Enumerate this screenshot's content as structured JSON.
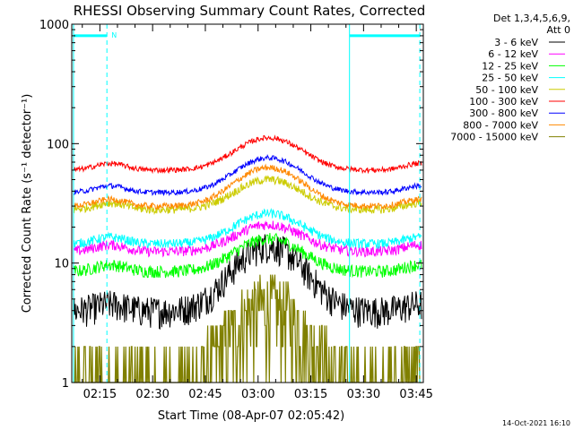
{
  "chart_data": {
    "type": "line",
    "title": "RHESSI Observing Summary Count Rates, Corrected",
    "xlabel": "Start Time (08-Apr-07 02:05:42)",
    "ylabel": "Corrected Count Rate (s⁻¹ detector⁻¹)",
    "yscale": "log",
    "ylim": [
      1,
      1000
    ],
    "xlim_minutes": [
      2.0,
      102.0
    ],
    "xticks": [
      {
        "minute": 10,
        "label": "02:15"
      },
      {
        "minute": 25,
        "label": "02:30"
      },
      {
        "minute": 40,
        "label": "02:45"
      },
      {
        "minute": 55,
        "label": "03:00"
      },
      {
        "minute": 70,
        "label": "03:15"
      },
      {
        "minute": 85,
        "label": "03:30"
      },
      {
        "minute": 100,
        "label": "03:45"
      }
    ],
    "yticks": [
      {
        "value": 1,
        "label": "1"
      },
      {
        "value": 10,
        "label": "10"
      },
      {
        "value": 100,
        "label": "100"
      },
      {
        "value": 1000,
        "label": "1000"
      }
    ],
    "legend_header": [
      "Det 1,3,4,5,6,9,",
      "Att 0"
    ],
    "legend_position": "right",
    "series": [
      {
        "name": "3 - 6 keV",
        "color": "#000000",
        "min": 4.0,
        "peak": 14.0,
        "jitter": 0.3
      },
      {
        "name": "6 - 12 keV",
        "color": "#ff00ff",
        "min": 12.5,
        "peak": 21.0,
        "jitter": 0.1
      },
      {
        "name": "12 - 25 keV",
        "color": "#00ff00",
        "min": 8.5,
        "peak": 16.0,
        "jitter": 0.12
      },
      {
        "name": "25 - 50 keV",
        "color": "#00ffff",
        "min": 14.5,
        "peak": 26.0,
        "jitter": 0.09
      },
      {
        "name": "50 - 100 keV",
        "color": "#cccc00",
        "min": 28.0,
        "peak": 50.0,
        "jitter": 0.08
      },
      {
        "name": "100 - 300 keV",
        "color": "#ff0000",
        "min": 60.0,
        "peak": 112.0,
        "jitter": 0.05
      },
      {
        "name": "300 - 800 keV",
        "color": "#0000ff",
        "min": 39.0,
        "peak": 76.0,
        "jitter": 0.05
      },
      {
        "name": "800 - 7000 keV",
        "color": "#ff8800",
        "min": 30.0,
        "peak": 63.0,
        "jitter": 0.06
      },
      {
        "name": "7000 - 15000 keV",
        "color": "#808000",
        "min": 1.0,
        "peak": 4.5,
        "jitter": 0.8
      }
    ],
    "annotations": [
      {
        "type": "bar",
        "label": "N",
        "color": "#00ffff",
        "start_minute": 2.5,
        "end_minute": 12.0,
        "level": 800
      },
      {
        "type": "bar",
        "label": "",
        "color": "#00ffff",
        "start_minute": 81.0,
        "end_minute": 101.0,
        "level": 800
      },
      {
        "type": "vline",
        "style": "solid",
        "color": "#00ffff",
        "minute": 2.5
      },
      {
        "type": "vline",
        "style": "dashed",
        "color": "#00ffff",
        "minute": 12.0
      },
      {
        "type": "vline",
        "style": "solid",
        "color": "#00ffff",
        "minute": 81.0
      },
      {
        "type": "vline",
        "style": "dashed",
        "color": "#00ffff",
        "minute": 101.0
      }
    ]
  },
  "footer_timestamp": "14-Oct-2021 16:10"
}
